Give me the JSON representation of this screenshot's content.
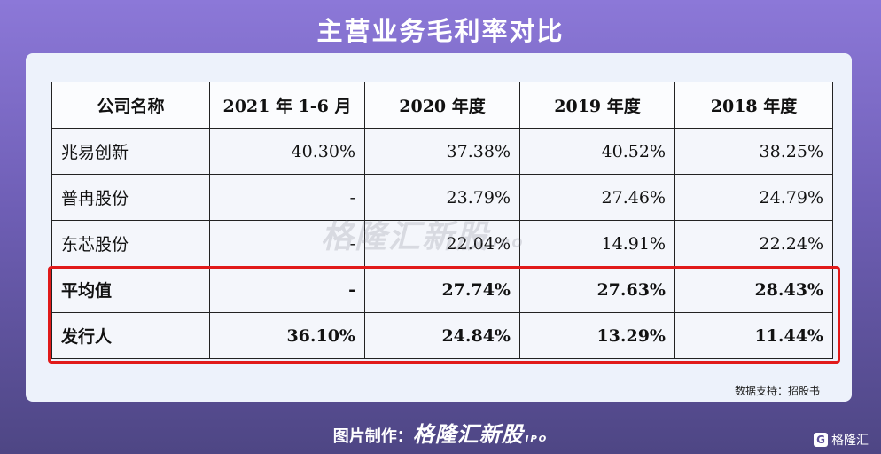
{
  "title": "主营业务毛利率对比",
  "table": {
    "headers": [
      "公司名称",
      "2021 年 1-6 月",
      "2020 年度",
      "2019 年度",
      "2018 年度"
    ],
    "rows": [
      {
        "name": "兆易创新",
        "values": [
          "40.30%",
          "37.38%",
          "40.52%",
          "38.25%"
        ]
      },
      {
        "name": "普冉股份",
        "values": [
          "-",
          "23.79%",
          "27.46%",
          "24.79%"
        ]
      },
      {
        "name": "东芯股份",
        "values": [
          "-",
          "22.04%",
          "14.91%",
          "22.24%"
        ]
      },
      {
        "name": "平均值",
        "values": [
          "-",
          "27.74%",
          "27.63%",
          "28.43%"
        ]
      },
      {
        "name": "发行人",
        "values": [
          "36.10%",
          "24.84%",
          "13.29%",
          "11.44%"
        ]
      }
    ]
  },
  "watermark": {
    "text": "格隆汇新股",
    "sub": "IPO"
  },
  "source": "数据支持：招股书",
  "footer": {
    "prefix": "图片制作：",
    "brand": "格隆汇新股",
    "brand_sub": "IPO"
  },
  "corner_logo": {
    "mark": "G",
    "text": "格隆汇"
  },
  "colors": {
    "highlight": "#e11a1a",
    "background_top": "#8c78d8",
    "background_bottom": "#4e4684"
  }
}
